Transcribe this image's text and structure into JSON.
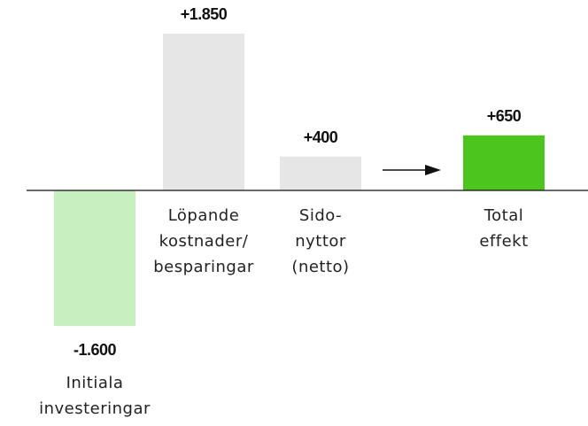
{
  "chart_data": {
    "type": "bar",
    "categories": [
      "Initiala\ninvesteringar",
      "Löpande\nkostnader/\nbesparingar",
      "Sido-\nnyttor\n(netto)",
      "Total\neffekt"
    ],
    "values": [
      -1600,
      1850,
      400,
      650
    ],
    "value_labels": [
      "-1.600",
      "+1.850",
      "+400",
      "+650"
    ],
    "colors": [
      "#c7efc0",
      "#e6e6e6",
      "#e6e6e6",
      "#4cc51f"
    ]
  }
}
